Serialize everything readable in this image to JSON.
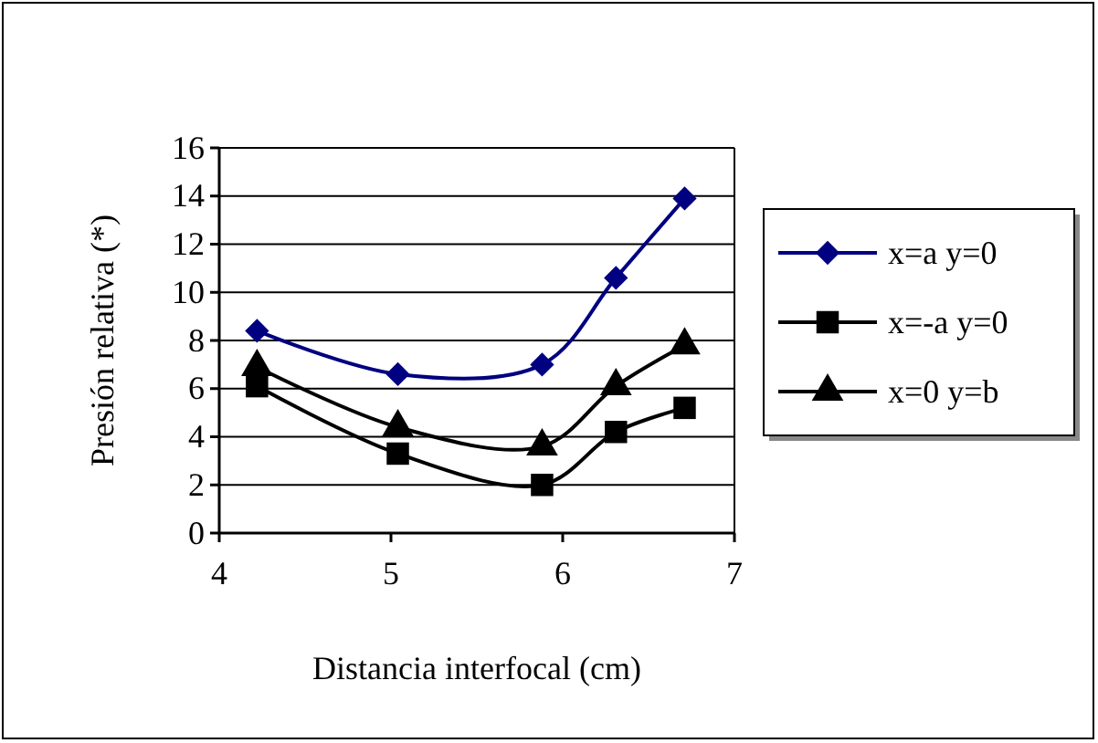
{
  "chart_data": {
    "type": "line",
    "xlabel": "Distancia interfocal (cm)",
    "ylabel": "Presión relativa (*)",
    "xlim": [
      4,
      7
    ],
    "xticks": [
      4,
      5,
      6,
      7
    ],
    "ylim": [
      0,
      16
    ],
    "yticks": [
      0,
      2,
      4,
      6,
      8,
      10,
      12,
      14,
      16
    ],
    "grid": "y",
    "legend": "right",
    "x": [
      4.22,
      5.04,
      5.88,
      6.31,
      6.71
    ],
    "series": [
      {
        "name": "x=a y=0",
        "color": "#000080",
        "marker": "diamond",
        "values": [
          8.4,
          6.6,
          7.0,
          10.6,
          13.9
        ]
      },
      {
        "name": "x=-a y=0",
        "color": "#000000",
        "marker": "square",
        "values": [
          6.1,
          3.3,
          2.0,
          4.2,
          5.2
        ]
      },
      {
        "name": "x=0 y=b",
        "color": "#000000",
        "marker": "triangle",
        "values": [
          6.9,
          4.4,
          3.6,
          6.1,
          7.8
        ]
      }
    ]
  }
}
